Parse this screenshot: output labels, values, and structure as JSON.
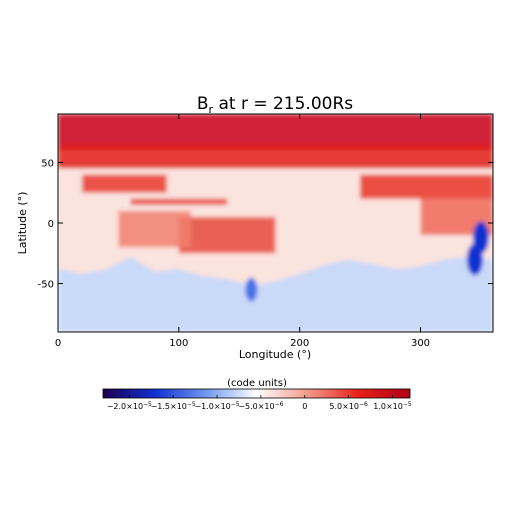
{
  "chart_data": [
    {
      "type": "heatmap",
      "title_main": "B",
      "title_sub": "r",
      "title_rest": " at r = 215.00Rs",
      "xlabel": "Longitude (°)",
      "ylabel": "Latitude (°)",
      "xlim": [
        0,
        360
      ],
      "ylim": [
        -90,
        90
      ],
      "xticks": [
        "0",
        "100",
        "200",
        "300"
      ],
      "xtick_values": [
        0,
        100,
        200,
        300
      ],
      "yticks": [
        "50",
        "0",
        "-50"
      ],
      "ytick_values": [
        50,
        0,
        -50
      ],
      "colormap": [
        "#1a0050",
        "#1030d0",
        "#6f96f0",
        "#ffffff",
        "#f39a8a",
        "#e82018",
        "#b00018"
      ],
      "features": {
        "north_level": 1e-05,
        "south_level": -6e-06,
        "current_sheet_latitude_deg": [
          [
            0,
            -38
          ],
          [
            20,
            -42
          ],
          [
            40,
            -38
          ],
          [
            60,
            -28
          ],
          [
            80,
            -40
          ],
          [
            100,
            -38
          ],
          [
            120,
            -44
          ],
          [
            140,
            -46
          ],
          [
            160,
            -52
          ],
          [
            180,
            -48
          ],
          [
            200,
            -42
          ],
          [
            220,
            -35
          ],
          [
            240,
            -30
          ],
          [
            260,
            -34
          ],
          [
            280,
            -38
          ],
          [
            300,
            -36
          ],
          [
            320,
            -30
          ],
          [
            340,
            -28
          ],
          [
            360,
            -30
          ]
        ],
        "negative_patches": [
          {
            "lon": 350,
            "lat": -12,
            "value": -2e-05
          },
          {
            "lon": 345,
            "lat": -30,
            "value": -1.5e-05
          },
          {
            "lon": 160,
            "lat": -55,
            "value": -1e-05
          }
        ]
      }
    },
    {
      "type": "colorbar",
      "label": "(code units)",
      "range": [
        -2.3e-05,
        1.2e-05
      ],
      "tick_values": [
        -2e-05,
        -1.5e-05,
        -1e-05,
        -5e-06,
        0,
        5e-06,
        1e-05
      ],
      "tick_labels": [
        {
          "mant": "−2.0×10",
          "exp": "−5"
        },
        {
          "mant": "−1.5×10",
          "exp": "−5"
        },
        {
          "mant": "−1.0×10",
          "exp": "−5"
        },
        {
          "mant": "−5.0×10",
          "exp": "−6"
        },
        {
          "mant": "0",
          "exp": ""
        },
        {
          "mant": "5.0×10",
          "exp": "−6"
        },
        {
          "mant": "1.0×10",
          "exp": "−5"
        }
      ]
    }
  ]
}
